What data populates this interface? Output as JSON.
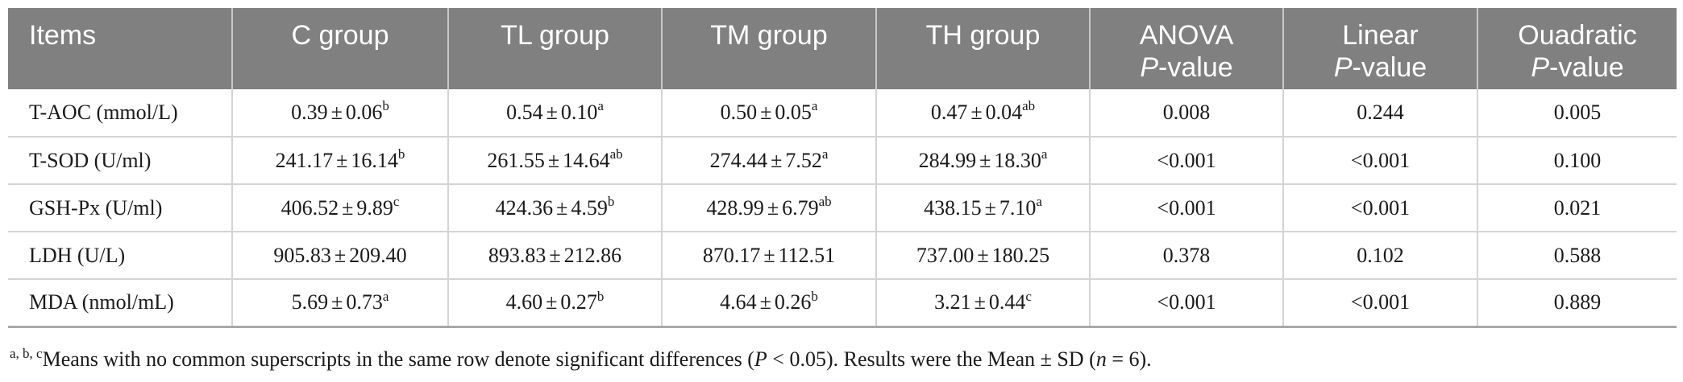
{
  "header": {
    "items": "Items",
    "c_group": "C group",
    "tl_group": "TL group",
    "tm_group": "TM group",
    "th_group": "TH group",
    "anova_line1": "ANOVA",
    "anova_p": "P",
    "anova_suffix": "-value",
    "linear_line1": "Linear",
    "linear_p": "P",
    "linear_suffix": "-value",
    "quad_line1": "Ouadratic",
    "quad_p": "P",
    "quad_suffix": "-value"
  },
  "rows": [
    {
      "item": "T-AOC (mmol/L)",
      "c": {
        "mean": "0.39",
        "sd": "0.06",
        "sup": "b"
      },
      "tl": {
        "mean": "0.54",
        "sd": "0.10",
        "sup": "a"
      },
      "tm": {
        "mean": "0.50",
        "sd": "0.05",
        "sup": "a"
      },
      "th": {
        "mean": "0.47",
        "sd": "0.04",
        "sup": "ab"
      },
      "anova": "0.008",
      "linear": "0.244",
      "quadratic": "0.005"
    },
    {
      "item": "T-SOD (U/ml)",
      "c": {
        "mean": "241.17",
        "sd": "16.14",
        "sup": "b"
      },
      "tl": {
        "mean": "261.55",
        "sd": "14.64",
        "sup": "ab"
      },
      "tm": {
        "mean": "274.44",
        "sd": "7.52",
        "sup": "a"
      },
      "th": {
        "mean": "284.99",
        "sd": "18.30",
        "sup": "a"
      },
      "anova": "<0.001",
      "linear": "<0.001",
      "quadratic": "0.100"
    },
    {
      "item": "GSH-Px (U/ml)",
      "c": {
        "mean": "406.52",
        "sd": "9.89",
        "sup": "c"
      },
      "tl": {
        "mean": "424.36",
        "sd": "4.59",
        "sup": "b"
      },
      "tm": {
        "mean": "428.99",
        "sd": "6.79",
        "sup": "ab"
      },
      "th": {
        "mean": "438.15",
        "sd": "7.10",
        "sup": "a"
      },
      "anova": "<0.001",
      "linear": "<0.001",
      "quadratic": "0.021"
    },
    {
      "item": "LDH (U/L)",
      "c": {
        "mean": "905.83",
        "sd": "209.40",
        "sup": ""
      },
      "tl": {
        "mean": "893.83",
        "sd": "212.86",
        "sup": ""
      },
      "tm": {
        "mean": "870.17",
        "sd": "112.51",
        "sup": ""
      },
      "th": {
        "mean": "737.00",
        "sd": "180.25",
        "sup": ""
      },
      "anova": "0.378",
      "linear": "0.102",
      "quadratic": "0.588"
    },
    {
      "item": "MDA (nmol/mL)",
      "c": {
        "mean": "5.69",
        "sd": "0.73",
        "sup": "a"
      },
      "tl": {
        "mean": "4.60",
        "sd": "0.27",
        "sup": "b"
      },
      "tm": {
        "mean": "4.64",
        "sd": "0.26",
        "sup": "b"
      },
      "th": {
        "mean": "3.21",
        "sd": "0.44",
        "sup": "c"
      },
      "anova": "<0.001",
      "linear": "<0.001",
      "quadratic": "0.889"
    }
  ],
  "pm_symbol": "±",
  "footnote": {
    "sup": "a, b, c",
    "text1": "Means with no common superscripts in the same row denote significant differences (",
    "p": "P",
    "text2": " < 0.05). Results were the Mean ± SD (",
    "n": "n",
    "text3": " = 6)."
  }
}
